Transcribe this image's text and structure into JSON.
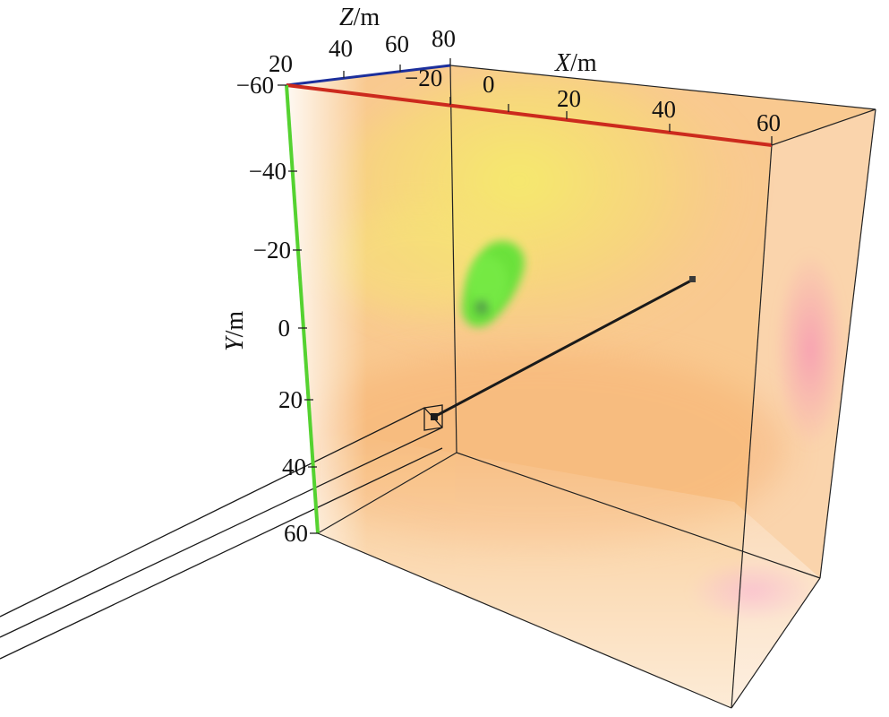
{
  "figure": {
    "axes": {
      "x": {
        "title_var": "X",
        "title_unit": "/m",
        "ticks": [
          "−20",
          "0",
          "20",
          "40",
          "60"
        ],
        "color": "#cc2a1d"
      },
      "y": {
        "title_var": "Y",
        "title_unit": "/m",
        "ticks": [
          "−60",
          "−40",
          "−20",
          "0",
          "20",
          "40",
          "60"
        ],
        "color": "#55d230"
      },
      "z": {
        "title_var": "Z",
        "title_unit": "/m",
        "ticks": [
          "20",
          "40",
          "60",
          "80"
        ],
        "color": "#1c2f9c"
      }
    },
    "colors": {
      "background_warm": "#f7b774",
      "background_yellow": "#f6ef6a",
      "background_pink": "#f7a0b4",
      "anomaly_green": "#58e334",
      "borehole": "#1a1a1a",
      "frame": "#222222"
    }
  }
}
